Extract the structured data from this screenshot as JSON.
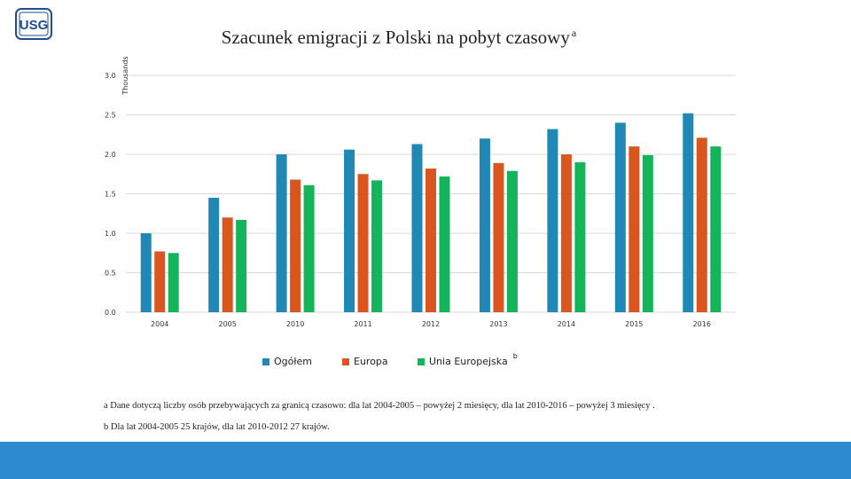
{
  "logo": {
    "text": "USG"
  },
  "colors": {
    "ogolem": "#1f88b5",
    "europa": "#d9561f",
    "unia": "#14b55a",
    "bottom_bar": "#2b8ad0"
  },
  "chart_data": {
    "type": "bar",
    "title": "Szacunek emigracji z Polski na pobyt czasowy",
    "title_superscript": "a",
    "ylabel": "Thousands",
    "xlabel": "",
    "ylim": [
      0,
      3.0
    ],
    "yticks": [
      "0.0",
      "0.5",
      "1.0",
      "1.5",
      "2.0",
      "2.5",
      "3.0"
    ],
    "ytick_values": [
      0,
      0.5,
      1.0,
      1.5,
      2.0,
      2.5,
      3.0
    ],
    "categories": [
      "2004",
      "2005",
      "2010",
      "2011",
      "2012",
      "2013",
      "2014",
      "2015",
      "2016"
    ],
    "series": [
      {
        "name": "Ogółem",
        "color": "#1f88b5",
        "values": [
          1.0,
          1.45,
          2.0,
          2.06,
          2.13,
          2.2,
          2.32,
          2.4,
          2.52
        ]
      },
      {
        "name": "Europa",
        "color": "#d9561f",
        "values": [
          0.77,
          1.2,
          1.68,
          1.75,
          1.82,
          1.89,
          2.0,
          2.1,
          2.21
        ]
      },
      {
        "name": "Unia Europejska",
        "color": "#14b55a",
        "values": [
          0.75,
          1.17,
          1.61,
          1.67,
          1.72,
          1.79,
          1.9,
          1.99,
          2.1
        ]
      }
    ],
    "legend_position": "bottom",
    "legend_note": "b",
    "grid": true
  },
  "footnotes": {
    "a": "a Dane dotyczą liczby osób przebywających za granicą czasowo: dla lat 2004-2005 – powyżej 2 miesięcy, dla lat 2010-2016 – powyżej 3 miesięcy .",
    "b": "b Dla lat 2004-2005 25 krajów, dla lat 2010-2012 27 krajów."
  }
}
